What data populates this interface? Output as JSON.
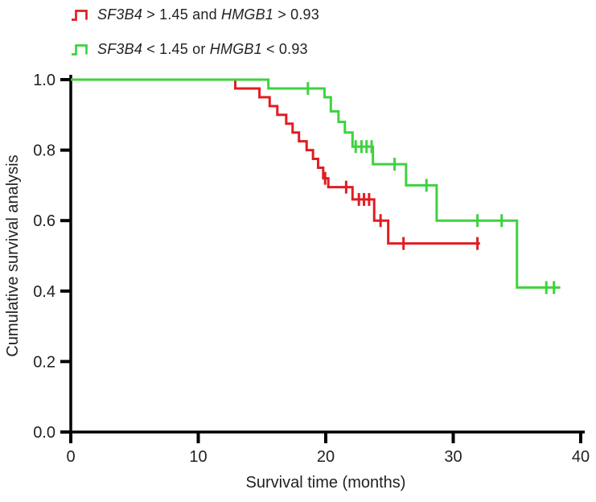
{
  "colors": {
    "background": "#ffffff",
    "axis": "#000000",
    "text": "#231f20",
    "red_series": "#e11d23",
    "green_series": "#3fd23f"
  },
  "legend": {
    "items": [
      {
        "id": "high-expression-group",
        "color": "#e11d23",
        "parts": [
          {
            "t": "SF3B4",
            "i": true
          },
          {
            "t": " > 1.45 and ",
            "i": false
          },
          {
            "t": "HMGB1",
            "i": true
          },
          {
            "t": " > 0.93",
            "i": false
          }
        ]
      },
      {
        "id": "low-expression-group",
        "color": "#3fd23f",
        "parts": [
          {
            "t": "SF3B4",
            "i": true
          },
          {
            "t": " < 1.45 or ",
            "i": false
          },
          {
            "t": "HMGB1",
            "i": true
          },
          {
            "t": " < 0.93",
            "i": false
          }
        ]
      }
    ]
  },
  "chart_data": {
    "type": "line",
    "subtype": "kaplan-meier-step",
    "title": "",
    "xlabel": "Survival time (months)",
    "ylabel": "Cumulative survival analysis",
    "xlim": [
      0,
      40
    ],
    "ylim": [
      0.0,
      1.0
    ],
    "xticks": [
      0,
      10,
      20,
      30,
      40
    ],
    "yticks": [
      0.0,
      0.2,
      0.4,
      0.6,
      0.8,
      1.0
    ],
    "grid": false,
    "legend_position": "top-left",
    "series": [
      {
        "name": "SF3B4 > 1.45 and HMGB1 > 0.93",
        "color": "#e11d23",
        "start": [
          0,
          1.0
        ],
        "steps": [
          [
            12.9,
            0.975
          ],
          [
            14.8,
            0.95
          ],
          [
            15.6,
            0.925
          ],
          [
            16.2,
            0.9
          ],
          [
            16.9,
            0.875
          ],
          [
            17.4,
            0.85
          ],
          [
            17.9,
            0.825
          ],
          [
            18.5,
            0.8
          ],
          [
            19.0,
            0.775
          ],
          [
            19.4,
            0.75
          ],
          [
            19.8,
            0.72
          ],
          [
            20.2,
            0.695
          ],
          [
            22.1,
            0.66
          ],
          [
            23.8,
            0.6
          ],
          [
            24.9,
            0.535
          ]
        ],
        "end_x": 32.1,
        "censor_x": [
          19.95,
          21.6,
          22.6,
          23.0,
          23.4,
          24.3,
          26.1,
          31.9
        ]
      },
      {
        "name": "SF3B4 < 1.45 or HMGB1 < 0.93",
        "color": "#3fd23f",
        "start": [
          0,
          1.0
        ],
        "steps": [
          [
            15.5,
            0.975
          ],
          [
            19.9,
            0.95
          ],
          [
            20.4,
            0.91
          ],
          [
            21.0,
            0.88
          ],
          [
            21.5,
            0.85
          ],
          [
            22.1,
            0.81
          ],
          [
            23.7,
            0.76
          ],
          [
            26.3,
            0.7
          ],
          [
            28.7,
            0.6
          ],
          [
            35.0,
            0.41
          ]
        ],
        "end_x": 38.4,
        "censor_x": [
          18.6,
          22.35,
          22.8,
          23.2,
          23.6,
          25.4,
          27.9,
          31.9,
          33.8,
          37.3,
          37.9
        ]
      }
    ]
  }
}
